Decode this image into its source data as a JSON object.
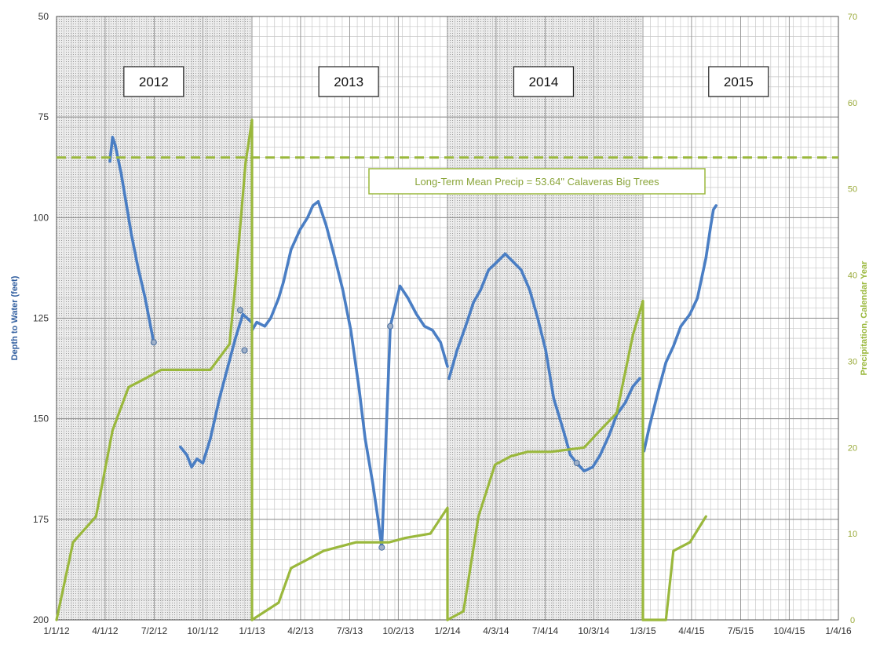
{
  "chart_data": {
    "type": "line",
    "ylabel": "Depth to Water (feet)",
    "y2label": "Precipitation, Calendar Year",
    "x_range": [
      "2012-01-01",
      "2016-01-04"
    ],
    "ylim": [
      50,
      200
    ],
    "y_inverted": true,
    "y2lim": [
      0,
      70
    ],
    "y_ticks": [
      50,
      75,
      100,
      125,
      150,
      175,
      200
    ],
    "y2_ticks": [
      0,
      10,
      20,
      30,
      40,
      50,
      60,
      70
    ],
    "x_tick_labels": [
      "1/1/12",
      "4/1/12",
      "7/2/12",
      "10/1/12",
      "1/1/13",
      "4/2/13",
      "7/3/13",
      "10/2/13",
      "1/2/14",
      "4/3/14",
      "7/4/14",
      "10/3/14",
      "1/3/15",
      "4/4/15",
      "7/5/15",
      "10/4/15",
      "1/4/16"
    ],
    "x_tick_dates": [
      "2012-01-01",
      "2012-04-01",
      "2012-07-02",
      "2012-10-01",
      "2013-01-01",
      "2013-04-02",
      "2013-07-03",
      "2013-10-02",
      "2014-01-02",
      "2014-04-03",
      "2014-07-04",
      "2014-10-03",
      "2015-01-03",
      "2015-04-04",
      "2015-07-05",
      "2015-10-04",
      "2016-01-04"
    ],
    "shaded_years": [
      "2012",
      "2014"
    ],
    "year_labels": [
      {
        "text": "2012",
        "date": "2012-07-01"
      },
      {
        "text": "2013",
        "date": "2013-07-01"
      },
      {
        "text": "2014",
        "date": "2014-07-01"
      },
      {
        "text": "2015",
        "date": "2015-07-01"
      }
    ],
    "mean_line": {
      "label": "Long-Term Mean Precip = 53.64\" Calaveras Big Trees",
      "value": 53.64,
      "axis": "y2",
      "color": "#9ab83c"
    },
    "colors": {
      "depth": "#4a7ec4",
      "precip": "#9ab83c",
      "shade": "#e8e8e8",
      "grid": "#bbbbbb"
    },
    "series": [
      {
        "axis": "y",
        "color": "#4a7ec4",
        "segments": [
          [
            [
              "2012-04-10",
              86
            ],
            [
              "2012-04-15",
              80
            ],
            [
              "2012-04-20",
              82
            ],
            [
              "2012-05-01",
              89
            ],
            [
              "2012-05-10",
              96
            ],
            [
              "2012-05-20",
              104
            ],
            [
              "2012-06-01",
              112
            ],
            [
              "2012-06-15",
              120
            ],
            [
              "2012-07-01",
              131
            ]
          ],
          [
            [
              "2012-08-20",
              157
            ],
            [
              "2012-09-01",
              159
            ],
            [
              "2012-09-10",
              162
            ],
            [
              "2012-09-20",
              160
            ],
            [
              "2012-10-01",
              161
            ],
            [
              "2012-10-15",
              155
            ],
            [
              "2012-11-01",
              145
            ],
            [
              "2012-11-15",
              138
            ],
            [
              "2012-12-01",
              130
            ],
            [
              "2012-12-15",
              124
            ],
            [
              "2012-12-31",
              126
            ]
          ],
          [
            [
              "2013-01-01",
              128
            ],
            [
              "2013-01-10",
              126
            ],
            [
              "2013-01-25",
              127
            ],
            [
              "2013-02-05",
              125
            ],
            [
              "2013-02-20",
              120
            ],
            [
              "2013-03-01",
              116
            ],
            [
              "2013-03-15",
              108
            ],
            [
              "2013-04-01",
              103
            ],
            [
              "2013-04-15",
              100
            ],
            [
              "2013-04-25",
              97
            ],
            [
              "2013-05-05",
              96
            ],
            [
              "2013-05-20",
              102
            ],
            [
              "2013-06-05",
              110
            ],
            [
              "2013-06-20",
              118
            ],
            [
              "2013-07-05",
              128
            ],
            [
              "2013-07-20",
              142
            ],
            [
              "2013-08-01",
              155
            ],
            [
              "2013-08-15",
              166
            ],
            [
              "2013-08-25",
              175
            ],
            [
              "2013-09-01",
              182
            ],
            [
              "2013-09-17",
              127
            ],
            [
              "2013-10-05",
              117
            ],
            [
              "2013-10-20",
              120
            ],
            [
              "2013-11-05",
              124
            ],
            [
              "2013-11-20",
              127
            ],
            [
              "2013-12-05",
              128
            ],
            [
              "2013-12-20",
              131
            ],
            [
              "2014-01-02",
              137
            ]
          ],
          [
            [
              "2014-01-05",
              140
            ],
            [
              "2014-01-20",
              133
            ],
            [
              "2014-02-05",
              127
            ],
            [
              "2014-02-20",
              121
            ],
            [
              "2014-03-05",
              118
            ],
            [
              "2014-03-20",
              113
            ],
            [
              "2014-04-05",
              111
            ],
            [
              "2014-04-20",
              109
            ],
            [
              "2014-05-05",
              111
            ],
            [
              "2014-05-20",
              113
            ],
            [
              "2014-06-05",
              118
            ],
            [
              "2014-06-20",
              125
            ],
            [
              "2014-07-05",
              133
            ],
            [
              "2014-07-20",
              145
            ],
            [
              "2014-08-05",
              152
            ],
            [
              "2014-08-20",
              159
            ],
            [
              "2014-09-01",
              161
            ],
            [
              "2014-09-15",
              163
            ],
            [
              "2014-10-01",
              162
            ],
            [
              "2014-10-15",
              159
            ],
            [
              "2014-11-01",
              154
            ],
            [
              "2014-11-15",
              149
            ],
            [
              "2014-12-01",
              146
            ],
            [
              "2014-12-15",
              142
            ],
            [
              "2014-12-28",
              140
            ]
          ],
          [
            [
              "2015-01-05",
              158
            ],
            [
              "2015-01-15",
              152
            ],
            [
              "2015-02-01",
              143
            ],
            [
              "2015-02-15",
              136
            ],
            [
              "2015-03-01",
              132
            ],
            [
              "2015-03-15",
              127
            ],
            [
              "2015-04-01",
              124
            ],
            [
              "2015-04-15",
              120
            ],
            [
              "2015-05-01",
              110
            ],
            [
              "2015-05-10",
              102
            ],
            [
              "2015-05-15",
              98
            ],
            [
              "2015-05-20",
              97
            ]
          ]
        ]
      },
      {
        "axis": "y2",
        "color": "#9ab83c",
        "segments": [
          [
            [
              "2012-01-01",
              0
            ],
            [
              "2012-02-01",
              9
            ],
            [
              "2012-03-15",
              12
            ],
            [
              "2012-04-15",
              22
            ],
            [
              "2012-05-15",
              27
            ],
            [
              "2012-06-15",
              28
            ],
            [
              "2012-07-15",
              29
            ],
            [
              "2012-08-15",
              29
            ],
            [
              "2012-10-15",
              29
            ],
            [
              "2012-11-20",
              32
            ],
            [
              "2012-12-01",
              39
            ],
            [
              "2012-12-20",
              53
            ],
            [
              "2013-01-01",
              58
            ],
            [
              "2013-01-01",
              0
            ]
          ],
          [
            [
              "2013-01-01",
              0
            ],
            [
              "2013-02-20",
              2
            ],
            [
              "2013-03-15",
              6
            ],
            [
              "2013-05-15",
              8
            ],
            [
              "2013-07-15",
              9
            ],
            [
              "2013-09-15",
              9
            ],
            [
              "2013-10-15",
              9.5
            ],
            [
              "2013-12-01",
              10
            ],
            [
              "2014-01-02",
              13
            ],
            [
              "2014-01-02",
              0
            ]
          ],
          [
            [
              "2014-01-02",
              0
            ],
            [
              "2014-02-01",
              1
            ],
            [
              "2014-03-01",
              12
            ],
            [
              "2014-04-01",
              18
            ],
            [
              "2014-05-01",
              19
            ],
            [
              "2014-06-01",
              19.5
            ],
            [
              "2014-07-15",
              19.5
            ],
            [
              "2014-09-15",
              20
            ],
            [
              "2014-10-15",
              22
            ],
            [
              "2014-11-15",
              24
            ],
            [
              "2014-12-15",
              33
            ],
            [
              "2015-01-03",
              37
            ],
            [
              "2015-01-03",
              0
            ]
          ],
          [
            [
              "2015-01-03",
              0
            ],
            [
              "2015-02-15",
              0
            ],
            [
              "2015-03-01",
              8
            ],
            [
              "2015-04-01",
              9
            ],
            [
              "2015-05-01",
              12
            ]
          ]
        ]
      }
    ],
    "markers": [
      {
        "date": "2012-07-01",
        "value": 131
      },
      {
        "date": "2012-12-10",
        "value": 123
      },
      {
        "date": "2012-12-18",
        "value": 133
      },
      {
        "date": "2013-09-01",
        "value": 182
      },
      {
        "date": "2013-09-17",
        "value": 127
      },
      {
        "date": "2014-09-01",
        "value": 161
      }
    ]
  }
}
